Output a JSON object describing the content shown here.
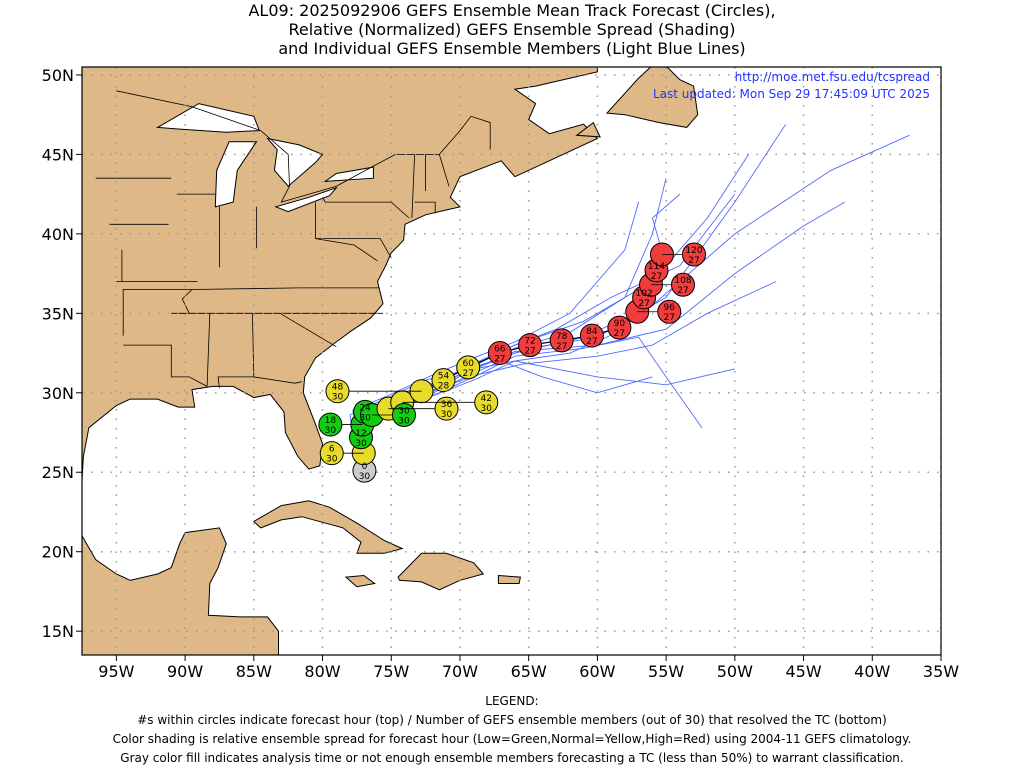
{
  "title": {
    "line1": "AL09: 2025092906 GEFS Ensemble Mean Track Forecast (Circles),",
    "line2": "Relative (Normalized) GEFS Ensemble Spread (Shading)",
    "line3": "and Individual GEFS Ensemble Members (Light Blue Lines)"
  },
  "source": {
    "url": "http://moe.met.fsu.edu/tcspread",
    "updated": "Last updated: Mon Sep 29 17:45:09 UTC 2025"
  },
  "legend": {
    "heading": "LEGEND:",
    "line1": "#s within circles indicate forecast hour (top) / Number of GEFS ensemble members (out of 30) that resolved the TC (bottom)",
    "line2": "Color shading is relative ensemble spread for forecast hour (Low=Green,Normal=Yellow,High=Red) using 2004-11 GEFS climatology.",
    "line3": "Gray color fill indicates analysis time or not enough ensemble members forecasting a TC (less than 50%) to warrant classification."
  },
  "colors": {
    "land": "#deb887",
    "member_line": "#4d6bff",
    "gray": "#cccccc",
    "green": "#11cc11",
    "yellow": "#e8dc2a",
    "red": "#f03c3c",
    "link": "#2233ff"
  },
  "chart_data": {
    "type": "map-track",
    "xlim": [
      -97.5,
      -35
    ],
    "ylim": [
      13.5,
      50.5
    ],
    "x_ticks": [
      "95W",
      "90W",
      "85W",
      "80W",
      "75W",
      "70W",
      "65W",
      "60W",
      "55W",
      "50W",
      "45W",
      "40W",
      "35W"
    ],
    "x_tick_values": [
      -95,
      -90,
      -85,
      -80,
      -75,
      -70,
      -65,
      -60,
      -55,
      -50,
      -45,
      -40,
      -35
    ],
    "y_ticks": [
      "15N",
      "20N",
      "25N",
      "30N",
      "35N",
      "40N",
      "45N",
      "50N"
    ],
    "y_tick_values": [
      15,
      20,
      25,
      30,
      35,
      40,
      45,
      50
    ],
    "grid": true,
    "mean_track": [
      {
        "hour": "0",
        "members": "30",
        "lon": -76.95,
        "lat": 25.1,
        "spread": "gray"
      },
      {
        "hour": "6",
        "members": "30",
        "lon": -77.0,
        "lat": 26.2,
        "spread": "yellow"
      },
      {
        "hour": "12",
        "members": "30",
        "lon": -77.2,
        "lat": 27.2,
        "spread": "green"
      },
      {
        "hour": "18",
        "members": "30",
        "lon": -77.1,
        "lat": 28.0,
        "spread": "green"
      },
      {
        "hour": "24",
        "members": "30",
        "lon": -76.9,
        "lat": 28.8,
        "spread": "green"
      },
      {
        "hour": "30",
        "members": "30",
        "lon": -76.4,
        "lat": 28.6,
        "spread": "green"
      },
      {
        "hour": "36",
        "members": "30",
        "lon": -75.2,
        "lat": 29.0,
        "spread": "yellow"
      },
      {
        "hour": "42",
        "members": "30",
        "lon": -74.2,
        "lat": 29.4,
        "spread": "yellow"
      },
      {
        "hour": "48",
        "members": "30",
        "lon": -72.8,
        "lat": 30.1,
        "spread": "yellow"
      },
      {
        "hour": "54",
        "members": "28",
        "lon": -71.2,
        "lat": 30.8,
        "spread": "yellow"
      },
      {
        "hour": "60",
        "members": "27",
        "lon": -69.4,
        "lat": 31.6,
        "spread": "yellow"
      },
      {
        "hour": "66",
        "members": "27",
        "lon": -67.1,
        "lat": 32.5,
        "spread": "red"
      },
      {
        "hour": "72",
        "members": "27",
        "lon": -64.9,
        "lat": 33.0,
        "spread": "red"
      },
      {
        "hour": "78",
        "members": "27",
        "lon": -62.6,
        "lat": 33.3,
        "spread": "red"
      },
      {
        "hour": "84",
        "members": "27",
        "lon": -60.4,
        "lat": 33.6,
        "spread": "red"
      },
      {
        "hour": "90",
        "members": "27",
        "lon": -58.4,
        "lat": 34.1,
        "spread": "red"
      },
      {
        "hour": "96",
        "members": "27",
        "lon": -57.1,
        "lat": 35.1,
        "spread": "red"
      },
      {
        "hour": "102",
        "members": "27",
        "lon": -56.6,
        "lat": 36.0,
        "spread": "red"
      },
      {
        "hour": "108",
        "members": "27",
        "lon": -56.1,
        "lat": 36.8,
        "spread": "red"
      },
      {
        "hour": "114",
        "members": "27",
        "lon": -55.7,
        "lat": 37.7,
        "spread": "red"
      },
      {
        "hour": "120",
        "members": "27",
        "lon": -55.3,
        "lat": 38.7,
        "spread": "red"
      }
    ],
    "member_tracks": [
      [
        [
          -77,
          25.3
        ],
        [
          -77.6,
          27.5
        ],
        [
          -77.5,
          28.8
        ],
        [
          -75,
          29.4
        ],
        [
          -72,
          30.4
        ],
        [
          -69,
          31.5
        ],
        [
          -66,
          32.5
        ],
        [
          -61,
          33.5
        ],
        [
          -56,
          35.5
        ],
        [
          -50,
          40
        ],
        [
          -43,
          44
        ],
        [
          -37.3,
          46.2
        ]
      ],
      [
        [
          -77,
          25.3
        ],
        [
          -77.4,
          27.3
        ],
        [
          -77,
          28.6
        ],
        [
          -75,
          29.2
        ],
        [
          -72,
          30.3
        ],
        [
          -69,
          31.6
        ],
        [
          -65,
          32.8
        ],
        [
          -60,
          33.5
        ],
        [
          -55,
          36
        ],
        [
          -50,
          42
        ],
        [
          -46.3,
          46.9
        ]
      ],
      [
        [
          -77,
          25.3
        ],
        [
          -77.8,
          27.6
        ],
        [
          -78,
          28.6
        ],
        [
          -75.5,
          29.6
        ],
        [
          -72.5,
          30.8
        ],
        [
          -69.5,
          31.4
        ],
        [
          -66,
          32
        ],
        [
          -62,
          32.5
        ],
        [
          -58,
          34
        ],
        [
          -55,
          38
        ],
        [
          -56,
          41
        ],
        [
          -54,
          42.5
        ]
      ],
      [
        [
          -77,
          25.3
        ],
        [
          -77.3,
          27.4
        ],
        [
          -76.8,
          28.5
        ],
        [
          -74.5,
          29
        ],
        [
          -71.5,
          30
        ],
        [
          -68.5,
          31.2
        ],
        [
          -66,
          32.3
        ],
        [
          -61,
          32.8
        ],
        [
          -57,
          33.5
        ],
        [
          -55,
          31
        ],
        [
          -52.4,
          27.8
        ]
      ],
      [
        [
          -77,
          25.3
        ],
        [
          -77.5,
          27.5
        ],
        [
          -77.2,
          28.9
        ],
        [
          -74.8,
          29.5
        ],
        [
          -72,
          30.6
        ],
        [
          -69,
          31.8
        ],
        [
          -66,
          32.8
        ],
        [
          -62,
          33.8
        ],
        [
          -58,
          36
        ],
        [
          -56,
          40
        ],
        [
          -55,
          43.5
        ]
      ],
      [
        [
          -77,
          25.3
        ],
        [
          -77.2,
          27.2
        ],
        [
          -76.5,
          28.4
        ],
        [
          -74,
          29.2
        ],
        [
          -71,
          30.5
        ],
        [
          -68.5,
          31.9
        ],
        [
          -66,
          33
        ],
        [
          -61,
          34.5
        ],
        [
          -56,
          37
        ],
        [
          -52,
          41
        ],
        [
          -49,
          45
        ]
      ],
      [
        [
          -77,
          25.3
        ],
        [
          -77.6,
          27.4
        ],
        [
          -77.3,
          28.4
        ],
        [
          -75,
          29
        ],
        [
          -72,
          29.8
        ],
        [
          -69,
          30.8
        ],
        [
          -66,
          32
        ],
        [
          -60,
          31
        ],
        [
          -55,
          30.5
        ],
        [
          -50,
          31.5
        ]
      ],
      [
        [
          -77,
          25.3
        ],
        [
          -77.5,
          27.6
        ],
        [
          -77.8,
          28.9
        ],
        [
          -75.3,
          29.8
        ],
        [
          -72.3,
          31
        ],
        [
          -69,
          32.2
        ],
        [
          -66,
          33.2
        ],
        [
          -62,
          35
        ],
        [
          -58,
          39
        ],
        [
          -57,
          42
        ]
      ],
      [
        [
          -77,
          25.3
        ],
        [
          -77.4,
          27.4
        ],
        [
          -77,
          28.7
        ],
        [
          -74.6,
          29.3
        ],
        [
          -71.6,
          30.3
        ],
        [
          -68.8,
          31.6
        ],
        [
          -66,
          32.6
        ],
        [
          -60,
          33
        ],
        [
          -55,
          34
        ],
        [
          -50,
          37.5
        ],
        [
          -45,
          40.5
        ],
        [
          -42,
          42
        ]
      ],
      [
        [
          -77,
          25.3
        ],
        [
          -77.7,
          27.5
        ],
        [
          -77.4,
          28.3
        ],
        [
          -75.2,
          28.9
        ],
        [
          -72.4,
          29.8
        ],
        [
          -69.6,
          31
        ],
        [
          -67,
          32
        ],
        [
          -64,
          31
        ],
        [
          -60,
          30
        ],
        [
          -56,
          31
        ]
      ],
      [
        [
          -77,
          25.3
        ],
        [
          -77.3,
          27.3
        ],
        [
          -76.9,
          28.8
        ],
        [
          -74.4,
          29.6
        ],
        [
          -71.4,
          30.8
        ],
        [
          -68.6,
          32
        ],
        [
          -66,
          33
        ],
        [
          -63,
          34
        ],
        [
          -59,
          36
        ],
        [
          -54,
          38
        ],
        [
          -50,
          42.5
        ]
      ],
      [
        [
          -77,
          25.3
        ],
        [
          -77.5,
          27.4
        ],
        [
          -77.1,
          28.5
        ],
        [
          -74.9,
          29.1
        ],
        [
          -72,
          30.1
        ],
        [
          -68.9,
          31.1
        ],
        [
          -65.5,
          31.8
        ],
        [
          -60,
          32.3
        ],
        [
          -56,
          33
        ],
        [
          -52,
          35
        ],
        [
          -47,
          37
        ]
      ]
    ]
  }
}
